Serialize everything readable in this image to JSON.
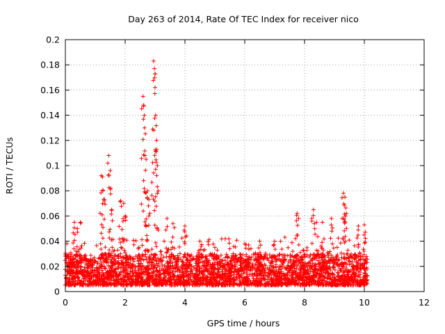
{
  "chart_data": {
    "type": "scatter",
    "title": "Day 263 of 2014, Rate Of TEC Index for receiver nico",
    "xlabel": "GPS time / hours",
    "ylabel": "ROTI / TECUs",
    "xlim": [
      0,
      12
    ],
    "ylim": [
      0,
      0.2
    ],
    "x_ticks": [
      "0",
      "2",
      "4",
      "6",
      "8",
      "10",
      "12"
    ],
    "y_ticks": [
      "0",
      "0.02",
      "0.04",
      "0.06",
      "0.08",
      "0.1",
      "0.12",
      "0.14",
      "0.16",
      "0.18",
      "0.2"
    ],
    "grid": true,
    "marker": "plus",
    "color": "#ff0000",
    "series": [
      {
        "name": "ROTI",
        "peaks": [
          [
            0.05,
            0.038
          ],
          [
            0.3,
            0.055
          ],
          [
            0.4,
            0.05
          ],
          [
            0.5,
            0.055
          ],
          [
            1.2,
            0.092
          ],
          [
            1.25,
            0.08
          ],
          [
            1.3,
            0.072
          ],
          [
            1.45,
            0.108
          ],
          [
            1.5,
            0.096
          ],
          [
            1.55,
            0.065
          ],
          [
            1.85,
            0.072
          ],
          [
            1.95,
            0.07
          ],
          [
            2.0,
            0.06
          ],
          [
            2.6,
            0.155
          ],
          [
            2.62,
            0.148
          ],
          [
            2.65,
            0.13
          ],
          [
            2.7,
            0.105
          ],
          [
            2.75,
            0.08
          ],
          [
            2.78,
            0.068
          ],
          [
            2.95,
            0.183
          ],
          [
            2.98,
            0.177
          ],
          [
            3.0,
            0.162
          ],
          [
            3.02,
            0.14
          ],
          [
            3.05,
            0.12
          ],
          [
            3.08,
            0.1
          ],
          [
            3.4,
            0.058
          ],
          [
            3.6,
            0.054
          ],
          [
            4.0,
            0.052
          ],
          [
            4.5,
            0.04
          ],
          [
            5.0,
            0.035
          ],
          [
            5.5,
            0.034
          ],
          [
            6.0,
            0.038
          ],
          [
            6.5,
            0.04
          ],
          [
            7.0,
            0.04
          ],
          [
            7.2,
            0.04
          ],
          [
            7.75,
            0.062
          ],
          [
            7.8,
            0.058
          ],
          [
            8.3,
            0.065
          ],
          [
            8.4,
            0.055
          ],
          [
            8.6,
            0.055
          ],
          [
            8.9,
            0.058
          ],
          [
            9.3,
            0.078
          ],
          [
            9.35,
            0.075
          ],
          [
            9.4,
            0.062
          ],
          [
            9.8,
            0.052
          ],
          [
            10.0,
            0.053
          ]
        ],
        "baseline_range": [
          0.005,
          0.03
        ],
        "x_range": [
          0,
          10.1
        ],
        "n_points": 3200
      }
    ]
  }
}
